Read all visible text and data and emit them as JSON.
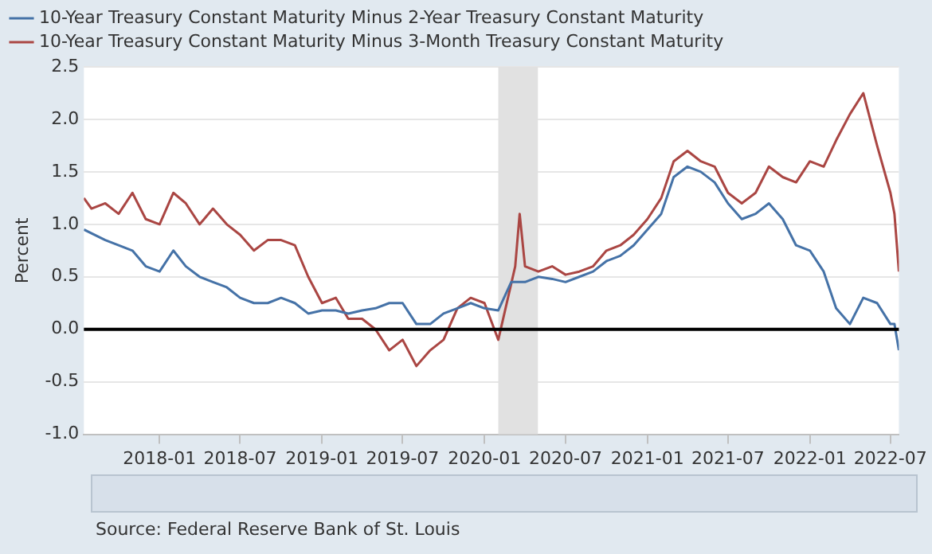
{
  "chart_data": {
    "type": "line",
    "ylabel": "Percent",
    "annotations": [
      "Source: Federal Reserve Bank of St. Louis"
    ],
    "xlim": [
      "2017-07-15",
      "2022-07-20"
    ],
    "xticks": [
      "2018-01",
      "2018-07",
      "2019-01",
      "2019-07",
      "2020-01",
      "2020-07",
      "2021-01",
      "2021-07",
      "2022-01",
      "2022-07"
    ],
    "ylim": [
      -1.0,
      2.5
    ],
    "yticks": [
      {
        "value": -1.0,
        "label": "-1.0"
      },
      {
        "value": -0.5,
        "label": "-0.5"
      },
      {
        "value": 0,
        "label": "0.0"
      },
      {
        "value": 0.5,
        "label": "0.5"
      },
      {
        "value": 1.0,
        "label": "1.0"
      },
      {
        "value": 1.5,
        "label": "1.5"
      },
      {
        "value": 2.0,
        "label": "2.0"
      },
      {
        "value": 2.5,
        "label": "2.5"
      }
    ],
    "grid": "y",
    "legend": "top",
    "marker": "none",
    "line_style": "solid",
    "bands": [
      {
        "axis": "x",
        "from": "2020-02-01",
        "to": "2020-04-30",
        "color": "#e1e1e1"
      }
    ],
    "ref_lines": [
      {
        "axis": "y",
        "value": 0,
        "color": "#000000"
      }
    ],
    "series": [
      {
        "name": "10-Year Treasury Constant Maturity Minus 2-Year Treasury Constant Maturity",
        "color": "#4572a7",
        "x": [
          "2017-07-15",
          "2017-09",
          "2017-10",
          "2017-11",
          "2017-12",
          "2018-01",
          "2018-02",
          "2018-03",
          "2018-04",
          "2018-05",
          "2018-06",
          "2018-07",
          "2018-08",
          "2018-09",
          "2018-10",
          "2018-11",
          "2018-12",
          "2019-01",
          "2019-02",
          "2019-03",
          "2019-04",
          "2019-05",
          "2019-06",
          "2019-07",
          "2019-08",
          "2019-09",
          "2019-10",
          "2019-11",
          "2019-12",
          "2020-01",
          "2020-02",
          "2020-03",
          "2020-04",
          "2020-05",
          "2020-06",
          "2020-07",
          "2020-08",
          "2020-09",
          "2020-10",
          "2020-11",
          "2020-12",
          "2021-01",
          "2021-02",
          "2021-03",
          "2021-04",
          "2021-05",
          "2021-06",
          "2021-07",
          "2021-08",
          "2021-09",
          "2021-10",
          "2021-11",
          "2021-12",
          "2022-01",
          "2022-02",
          "2022-03",
          "2022-04",
          "2022-05",
          "2022-06",
          "2022-07-01",
          "2022-07-10",
          "2022-07-20"
        ],
        "values": [
          0.95,
          0.85,
          0.8,
          0.75,
          0.6,
          0.55,
          0.75,
          0.6,
          0.5,
          0.45,
          0.4,
          0.3,
          0.25,
          0.25,
          0.3,
          0.25,
          0.15,
          0.18,
          0.18,
          0.15,
          0.18,
          0.2,
          0.25,
          0.25,
          0.05,
          0.05,
          0.15,
          0.2,
          0.25,
          0.2,
          0.18,
          0.45,
          0.45,
          0.5,
          0.48,
          0.45,
          0.5,
          0.55,
          0.65,
          0.7,
          0.8,
          0.95,
          1.1,
          1.45,
          1.55,
          1.5,
          1.4,
          1.2,
          1.05,
          1.1,
          1.2,
          1.05,
          0.8,
          0.75,
          0.55,
          0.2,
          0.05,
          0.3,
          0.25,
          0.05,
          0.05,
          -0.2
        ]
      },
      {
        "name": "10-Year Treasury Constant Maturity Minus 3-Month Treasury Constant Maturity",
        "color": "#aa4643",
        "x": [
          "2017-07-15",
          "2017-08",
          "2017-09",
          "2017-10",
          "2017-11",
          "2017-12",
          "2018-01",
          "2018-02",
          "2018-03",
          "2018-04",
          "2018-05",
          "2018-06",
          "2018-07",
          "2018-08",
          "2018-09",
          "2018-10",
          "2018-11",
          "2018-12",
          "2019-01",
          "2019-02",
          "2019-03",
          "2019-04",
          "2019-05",
          "2019-06",
          "2019-07",
          "2019-08",
          "2019-09",
          "2019-10",
          "2019-11",
          "2019-12",
          "2020-01",
          "2020-02",
          "2020-03-10",
          "2020-03-20",
          "2020-04",
          "2020-05",
          "2020-06",
          "2020-07",
          "2020-08",
          "2020-09",
          "2020-10",
          "2020-11",
          "2020-12",
          "2021-01",
          "2021-02",
          "2021-03",
          "2021-04",
          "2021-05",
          "2021-06",
          "2021-07",
          "2021-08",
          "2021-09",
          "2021-10",
          "2021-11",
          "2021-12",
          "2022-01",
          "2022-02",
          "2022-03",
          "2022-04",
          "2022-05",
          "2022-06",
          "2022-07-01",
          "2022-07-10",
          "2022-07-20"
        ],
        "values": [
          1.25,
          1.15,
          1.2,
          1.1,
          1.3,
          1.05,
          1.0,
          1.3,
          1.2,
          1.0,
          1.15,
          1.0,
          0.9,
          0.75,
          0.85,
          0.85,
          0.8,
          0.5,
          0.25,
          0.3,
          0.1,
          0.1,
          0.0,
          -0.2,
          -0.1,
          -0.35,
          -0.2,
          -0.1,
          0.2,
          0.3,
          0.25,
          -0.1,
          0.6,
          1.1,
          0.6,
          0.55,
          0.6,
          0.52,
          0.55,
          0.6,
          0.75,
          0.8,
          0.9,
          1.05,
          1.25,
          1.6,
          1.7,
          1.6,
          1.55,
          1.3,
          1.2,
          1.3,
          1.55,
          1.45,
          1.4,
          1.6,
          1.55,
          1.8,
          2.05,
          2.25,
          1.75,
          1.3,
          1.1,
          0.55
        ]
      }
    ]
  }
}
